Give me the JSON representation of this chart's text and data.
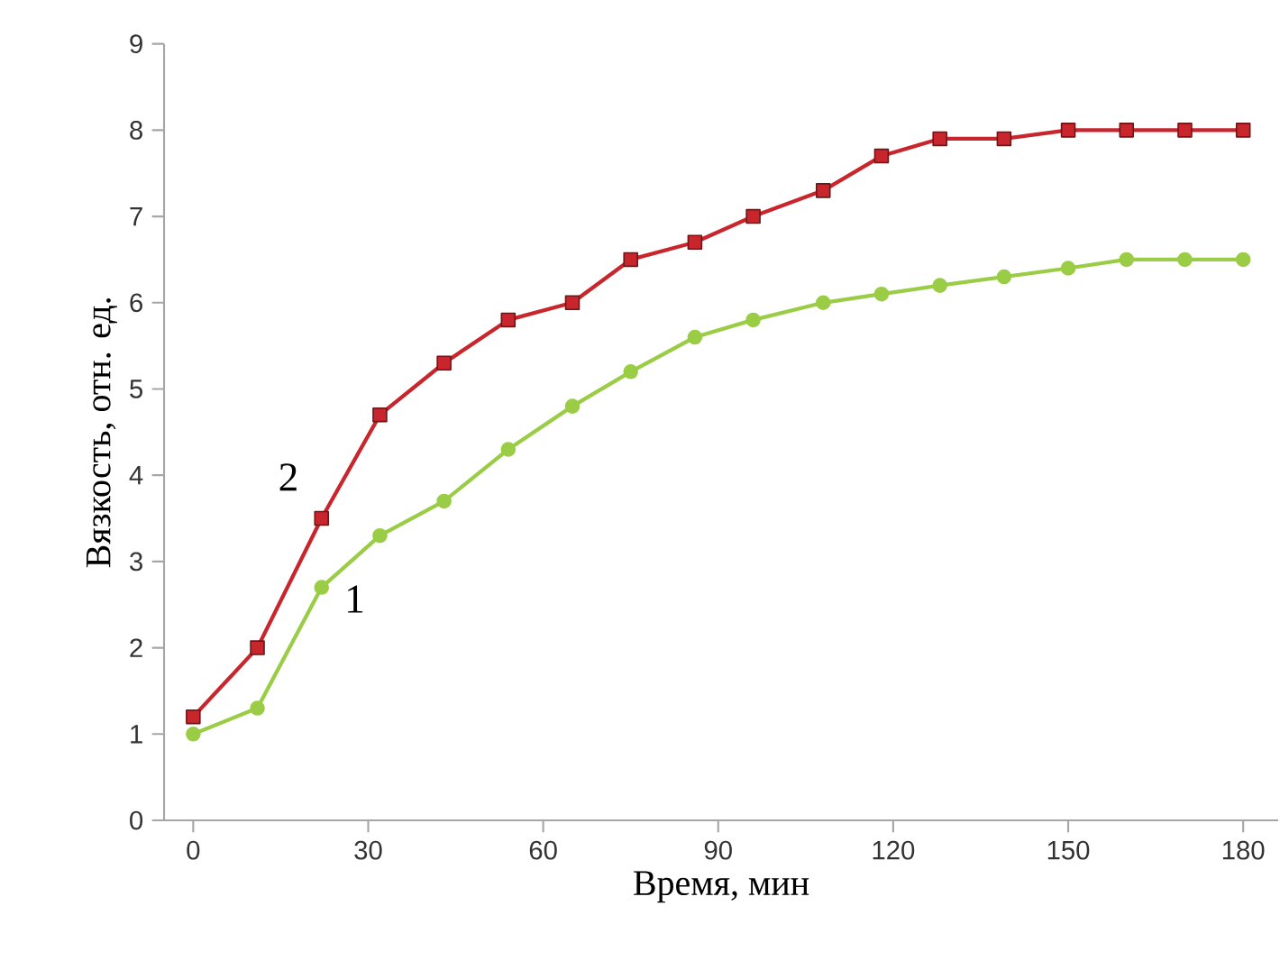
{
  "chart_data": {
    "type": "line",
    "xlabel": "Время, мин",
    "ylabel": "Вязкость, отн. ед.",
    "x": [
      0,
      11,
      22,
      32,
      43,
      54,
      65,
      75,
      86,
      96,
      108,
      118,
      128,
      139,
      150,
      160,
      170,
      180
    ],
    "series": [
      {
        "name": "1",
        "color": "#9acd45",
        "marker": "circle",
        "values": [
          1.0,
          1.3,
          2.7,
          3.3,
          3.7,
          4.3,
          4.8,
          5.2,
          5.6,
          5.8,
          6.0,
          6.1,
          6.2,
          6.3,
          6.4,
          6.5,
          6.5,
          6.5
        ]
      },
      {
        "name": "2",
        "color": "#c8262c",
        "marker": "square",
        "values": [
          1.2,
          2.0,
          3.5,
          4.7,
          5.3,
          5.8,
          6.0,
          6.5,
          6.7,
          7.0,
          7.3,
          7.7,
          7.9,
          7.9,
          8.0,
          8.0,
          8.0,
          8.0
        ]
      }
    ],
    "xlim": [
      -5,
      186
    ],
    "xticks": [
      0,
      30,
      60,
      90,
      120,
      150,
      180
    ],
    "ylim": [
      0,
      9
    ],
    "yticks": [
      0,
      1,
      2,
      3,
      4,
      5,
      6,
      7,
      8,
      9
    ],
    "line_style": "solid"
  }
}
